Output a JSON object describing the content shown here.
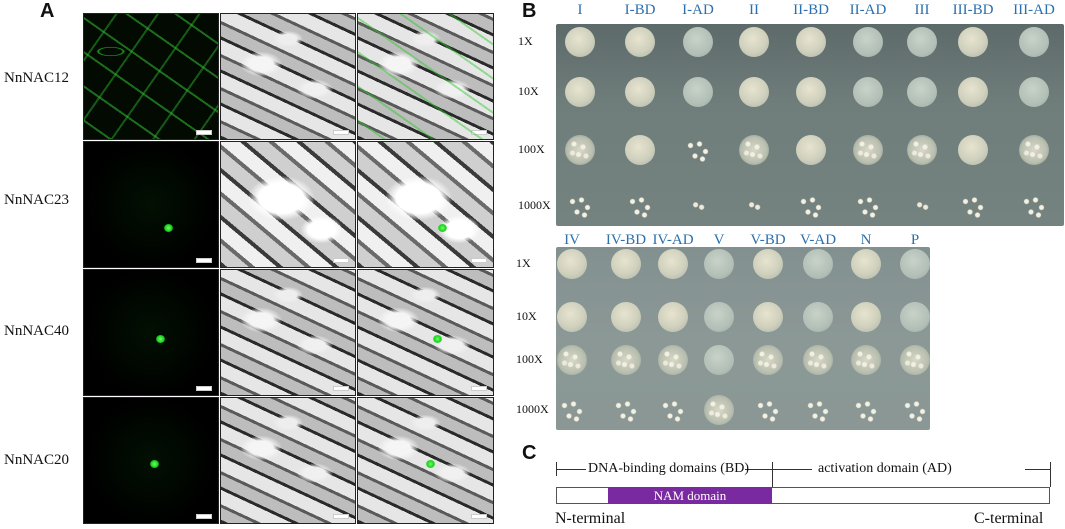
{
  "panels": {
    "a": "A",
    "b": "B",
    "c": "C"
  },
  "panel_a": {
    "rows": [
      {
        "label": "NnNAC12",
        "pattern": "membrane"
      },
      {
        "label": "NnNAC23",
        "pattern": "nucleus"
      },
      {
        "label": "NnNAC40",
        "pattern": "nucleus"
      },
      {
        "label": "NnNAC20",
        "pattern": "nucleus"
      }
    ]
  },
  "panel_b": {
    "plate1": {
      "columns": [
        "I",
        "I-BD",
        "I-AD",
        "II",
        "II-BD",
        "II-AD",
        "III",
        "III-BD",
        "III-AD"
      ],
      "dilutions": [
        "1X",
        "10X",
        "100X",
        "1000X"
      ]
    },
    "plate2": {
      "columns": [
        "IV",
        "IV-BD",
        "IV-AD",
        "V",
        "V-BD",
        "V-AD",
        "N",
        "P"
      ],
      "dilutions": [
        "1X",
        "10X",
        "100X",
        "1000X"
      ]
    },
    "label_color": "#2b6fae"
  },
  "panel_c": {
    "dna_binding": "DNA-binding domains (BD)",
    "activation": "activation domain (AD)",
    "nam": "NAM domain",
    "n_terminal": "N-terminal",
    "c_terminal": "C-terminal",
    "nam_color": "#7a2aa0"
  }
}
